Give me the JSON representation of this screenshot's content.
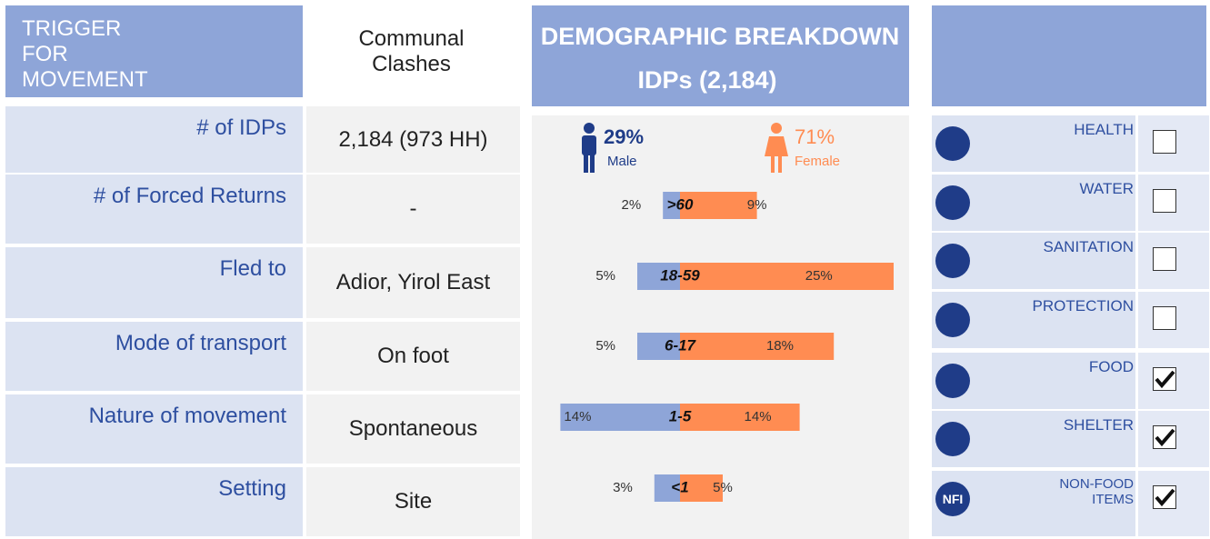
{
  "table": {
    "header": [
      "TRIGGER FOR MOVEMENT",
      "Communal Clashes"
    ],
    "rows": [
      [
        "# of IDPs",
        "2,184 (973 HH)"
      ],
      [
        "# of Forced Returns",
        "-"
      ],
      [
        "Fled to",
        "Adior, Yirol East"
      ],
      [
        "Mode of transport",
        "On foot"
      ],
      [
        "Nature of movement",
        "Spontaneous"
      ],
      [
        "Setting",
        "Site"
      ]
    ]
  },
  "chart_data": {
    "type": "pyramid",
    "title": "DEMOGRAPHIC BREAKDOWN",
    "subtitle": "IDPs (2,184)",
    "totals": [
      {
        "name": "Male",
        "value": 29,
        "label": "29%",
        "color": "#1f3c88"
      },
      {
        "name": "Female",
        "value": 71,
        "label": "71%",
        "color": "#ff8c52"
      }
    ],
    "categories": [
      ">60",
      "18-59",
      "6-17",
      "1-5",
      "<1"
    ],
    "series": [
      {
        "name": "Male",
        "color": "#8ea5d8",
        "values": [
          2,
          5,
          5,
          14,
          3
        ],
        "value_labels": [
          "2%",
          "5%",
          "5%",
          "14%",
          "3%"
        ]
      },
      {
        "name": "Female",
        "color": "#ff8c52",
        "values": [
          9,
          25,
          18,
          14,
          5
        ],
        "value_labels": [
          "9%",
          "25%",
          "18%",
          "14%",
          "5%"
        ]
      }
    ]
  },
  "needs": [
    {
      "label": "HEALTH",
      "checked": false
    },
    {
      "label": "WATER",
      "checked": false
    },
    {
      "label": "SANITATION",
      "checked": false
    },
    {
      "label": "PROTECTION",
      "checked": false
    },
    {
      "label": "FOOD",
      "checked": true
    },
    {
      "label": "SHELTER",
      "checked": true
    },
    {
      "label": "NON-FOOD ITEMS",
      "icon_text": "NFI",
      "checked": true
    }
  ]
}
